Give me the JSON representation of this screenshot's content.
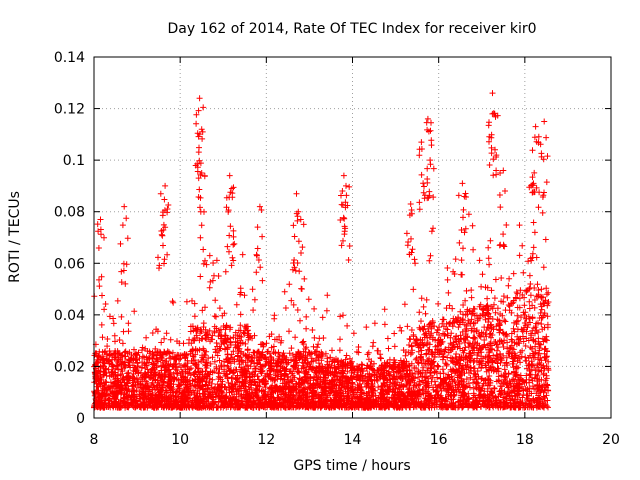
{
  "chart_data": {
    "type": "scatter",
    "title": "Day 162 of 2014, Rate Of TEC Index for receiver kir0",
    "xlabel": "GPS time / hours",
    "ylabel": "ROTI / TECUs",
    "xlim": [
      8,
      20
    ],
    "ylim": [
      0,
      0.14
    ],
    "xticks": [
      8,
      10,
      12,
      14,
      16,
      18,
      20
    ],
    "xtick_labels": [
      "8",
      "10",
      "12",
      "14",
      "16",
      "18",
      "20"
    ],
    "yticks": [
      0,
      0.02,
      0.04,
      0.06,
      0.08,
      0.1,
      0.12,
      0.14
    ],
    "ytick_labels": [
      "0",
      "0.02",
      "0.04",
      "0.06",
      "0.08",
      "0.1",
      "0.12",
      "0.14"
    ],
    "grid": true,
    "marker": "+",
    "color": "#ff0000",
    "series": [
      {
        "name": "ROTI",
        "x_range": [
          8.0,
          18.55
        ],
        "typical_range": [
          0.005,
          0.035
        ],
        "peaks": [
          {
            "x": 8.15,
            "y": 0.077
          },
          {
            "x": 8.7,
            "y": 0.082
          },
          {
            "x": 9.55,
            "y": 0.087
          },
          {
            "x": 9.65,
            "y": 0.09
          },
          {
            "x": 10.45,
            "y": 0.124
          },
          {
            "x": 10.5,
            "y": 0.112
          },
          {
            "x": 10.5,
            "y": 0.095
          },
          {
            "x": 11.15,
            "y": 0.094
          },
          {
            "x": 11.2,
            "y": 0.089
          },
          {
            "x": 11.85,
            "y": 0.082
          },
          {
            "x": 12.7,
            "y": 0.087
          },
          {
            "x": 12.8,
            "y": 0.077
          },
          {
            "x": 13.8,
            "y": 0.094
          },
          {
            "x": 13.85,
            "y": 0.09
          },
          {
            "x": 15.35,
            "y": 0.083
          },
          {
            "x": 15.6,
            "y": 0.107
          },
          {
            "x": 15.75,
            "y": 0.116
          },
          {
            "x": 15.8,
            "y": 0.1
          },
          {
            "x": 16.55,
            "y": 0.091
          },
          {
            "x": 17.25,
            "y": 0.126
          },
          {
            "x": 17.3,
            "y": 0.118
          },
          {
            "x": 17.5,
            "y": 0.096
          },
          {
            "x": 18.2,
            "y": 0.091
          },
          {
            "x": 18.25,
            "y": 0.113
          },
          {
            "x": 18.45,
            "y": 0.115
          }
        ]
      }
    ]
  }
}
